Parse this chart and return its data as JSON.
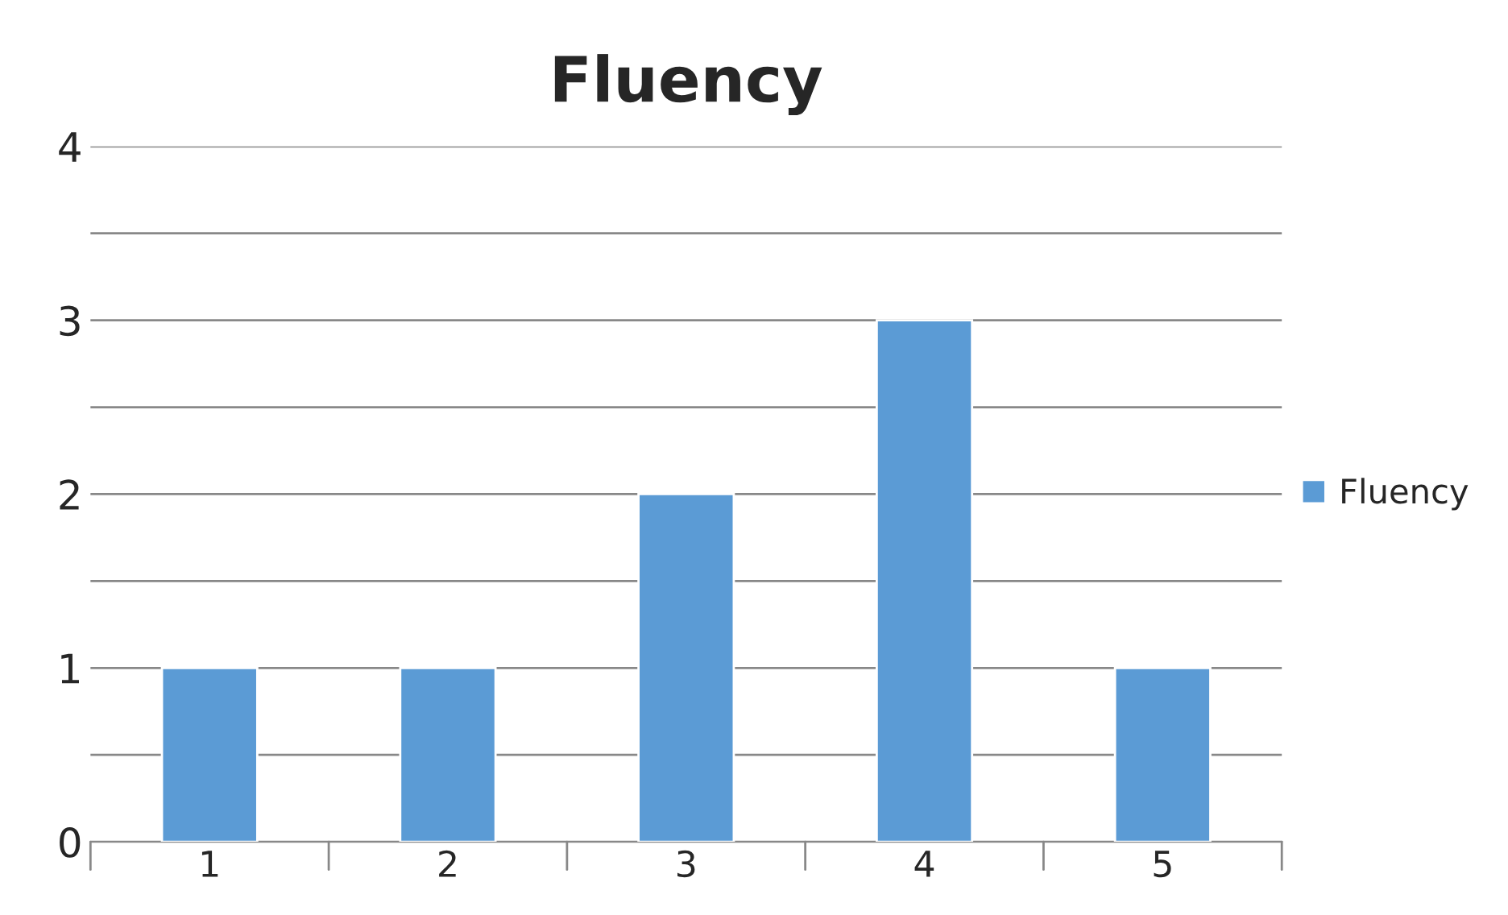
{
  "chart_data": {
    "type": "bar",
    "title": "Fluency",
    "categories": [
      "1",
      "2",
      "3",
      "4",
      "5"
    ],
    "series": [
      {
        "name": "Fluency",
        "color": "#5b9bd5",
        "values": [
          1,
          1,
          2,
          3,
          1
        ]
      }
    ],
    "ylim": [
      0,
      4
    ],
    "yticks": [
      0,
      {
        "value": 0.5,
        "label": null
      },
      1,
      {
        "value": 1.5,
        "label": null
      },
      2,
      {
        "value": 2.5,
        "label": null
      },
      3,
      {
        "value": 3.5,
        "label": null
      },
      4
    ],
    "grid": "y",
    "legend": "right"
  }
}
